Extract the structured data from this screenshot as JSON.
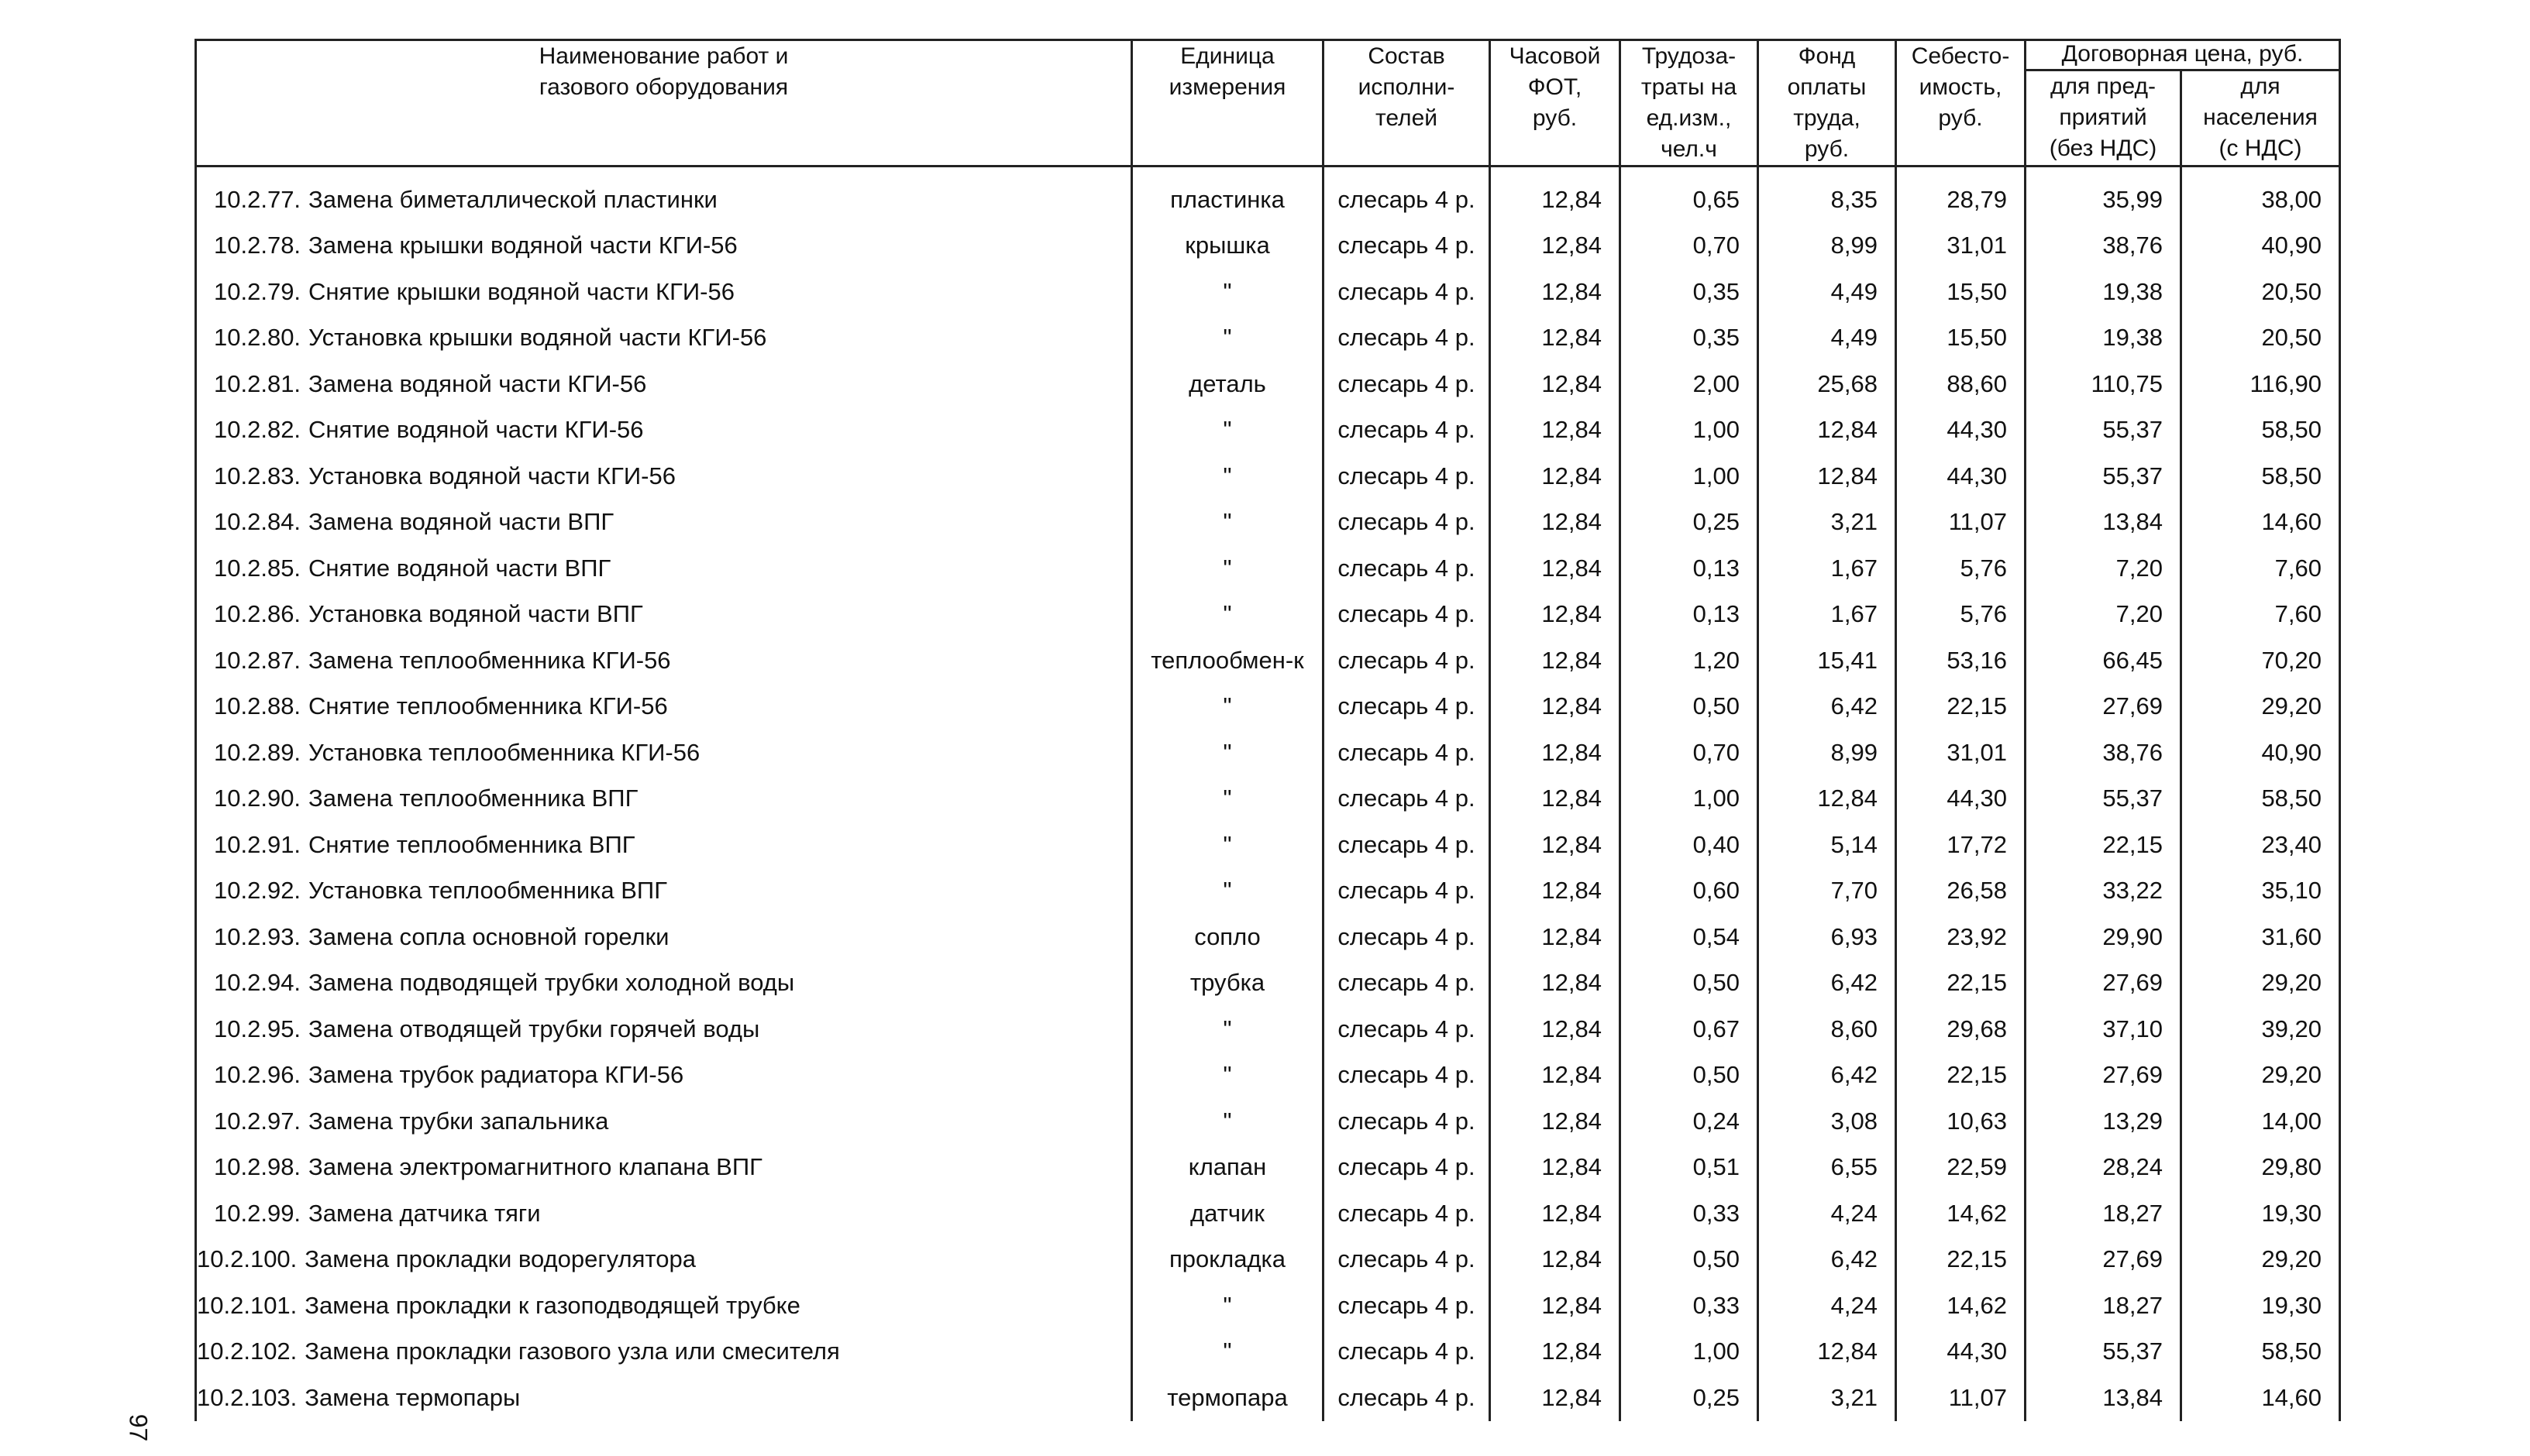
{
  "table": {
    "header": {
      "columns": [
        "Наименование работ и\nгазового оборудования",
        "Единица\nизмерения",
        "Состав\nисполни-\nтелей",
        "Часовой\nФОТ,\nруб.",
        "Трудоза-\nтраты на\nед.изм.,\nчел.ч",
        "Фонд\nоплаты\nтруда,\nруб.",
        "Себесто-\nимость,\nруб."
      ],
      "group": "Договорная цена, руб.",
      "subcolumns": [
        "для пред-\nприятий\n(без НДС)",
        "для\nнаселения\n(с НДС)"
      ]
    },
    "rows": [
      [
        "10.2.77.",
        "Замена биметаллической пластинки",
        "пластинка",
        "слесарь 4 р.",
        "12,84",
        "0,65",
        "8,35",
        "28,79",
        "35,99",
        "38,00"
      ],
      [
        "10.2.78.",
        "Замена крышки водяной части КГИ-56",
        "крышка",
        "слесарь 4 р.",
        "12,84",
        "0,70",
        "8,99",
        "31,01",
        "38,76",
        "40,90"
      ],
      [
        "10.2.79.",
        "Снятие крышки водяной части КГИ-56",
        "\"",
        "слесарь 4 р.",
        "12,84",
        "0,35",
        "4,49",
        "15,50",
        "19,38",
        "20,50"
      ],
      [
        "10.2.80.",
        "Установка крышки водяной части КГИ-56",
        "\"",
        "слесарь 4 р.",
        "12,84",
        "0,35",
        "4,49",
        "15,50",
        "19,38",
        "20,50"
      ],
      [
        "10.2.81.",
        "Замена водяной части КГИ-56",
        "деталь",
        "слесарь 4 р.",
        "12,84",
        "2,00",
        "25,68",
        "88,60",
        "110,75",
        "116,90"
      ],
      [
        "10.2.82.",
        "Снятие водяной части КГИ-56",
        "\"",
        "слесарь 4 р.",
        "12,84",
        "1,00",
        "12,84",
        "44,30",
        "55,37",
        "58,50"
      ],
      [
        "10.2.83.",
        "Установка водяной части КГИ-56",
        "\"",
        "слесарь 4 р.",
        "12,84",
        "1,00",
        "12,84",
        "44,30",
        "55,37",
        "58,50"
      ],
      [
        "10.2.84.",
        "Замена водяной части ВПГ",
        "\"",
        "слесарь 4 р.",
        "12,84",
        "0,25",
        "3,21",
        "11,07",
        "13,84",
        "14,60"
      ],
      [
        "10.2.85.",
        "Снятие водяной части ВПГ",
        "\"",
        "слесарь 4 р.",
        "12,84",
        "0,13",
        "1,67",
        "5,76",
        "7,20",
        "7,60"
      ],
      [
        "10.2.86.",
        "Установка водяной части ВПГ",
        "\"",
        "слесарь 4 р.",
        "12,84",
        "0,13",
        "1,67",
        "5,76",
        "7,20",
        "7,60"
      ],
      [
        "10.2.87.",
        "Замена теплообменника КГИ-56",
        "теплообмен-к",
        "слесарь 4 р.",
        "12,84",
        "1,20",
        "15,41",
        "53,16",
        "66,45",
        "70,20"
      ],
      [
        "10.2.88.",
        "Снятие теплообменника КГИ-56",
        "\"",
        "слесарь 4 р.",
        "12,84",
        "0,50",
        "6,42",
        "22,15",
        "27,69",
        "29,20"
      ],
      [
        "10.2.89.",
        "Установка теплообменника КГИ-56",
        "\"",
        "слесарь 4 р.",
        "12,84",
        "0,70",
        "8,99",
        "31,01",
        "38,76",
        "40,90"
      ],
      [
        "10.2.90.",
        "Замена теплообменника ВПГ",
        "\"",
        "слесарь 4 р.",
        "12,84",
        "1,00",
        "12,84",
        "44,30",
        "55,37",
        "58,50"
      ],
      [
        "10.2.91.",
        "Снятие теплообменника ВПГ",
        "\"",
        "слесарь 4 р.",
        "12,84",
        "0,40",
        "5,14",
        "17,72",
        "22,15",
        "23,40"
      ],
      [
        "10.2.92.",
        "Установка теплообменника ВПГ",
        "\"",
        "слесарь 4 р.",
        "12,84",
        "0,60",
        "7,70",
        "26,58",
        "33,22",
        "35,10"
      ],
      [
        "10.2.93.",
        "Замена сопла основной горелки",
        "сопло",
        "слесарь 4 р.",
        "12,84",
        "0,54",
        "6,93",
        "23,92",
        "29,90",
        "31,60"
      ],
      [
        "10.2.94.",
        "Замена подводящей трубки холодной воды",
        "трубка",
        "слесарь 4 р.",
        "12,84",
        "0,50",
        "6,42",
        "22,15",
        "27,69",
        "29,20"
      ],
      [
        "10.2.95.",
        "Замена отводящей трубки горячей воды",
        "\"",
        "слесарь 4 р.",
        "12,84",
        "0,67",
        "8,60",
        "29,68",
        "37,10",
        "39,20"
      ],
      [
        "10.2.96.",
        "Замена трубок радиатора КГИ-56",
        "\"",
        "слесарь 4 р.",
        "12,84",
        "0,50",
        "6,42",
        "22,15",
        "27,69",
        "29,20"
      ],
      [
        "10.2.97.",
        "Замена трубки запальника",
        "\"",
        "слесарь 4 р.",
        "12,84",
        "0,24",
        "3,08",
        "10,63",
        "13,29",
        "14,00"
      ],
      [
        "10.2.98.",
        "Замена электромагнитного клапана ВПГ",
        "клапан",
        "слесарь 4 р.",
        "12,84",
        "0,51",
        "6,55",
        "22,59",
        "28,24",
        "29,80"
      ],
      [
        "10.2.99.",
        "Замена датчика тяги",
        "датчик",
        "слесарь 4 р.",
        "12,84",
        "0,33",
        "4,24",
        "14,62",
        "18,27",
        "19,30"
      ],
      [
        "10.2.100.",
        "Замена прокладки водорегулятора",
        "прокладка",
        "слесарь 4 р.",
        "12,84",
        "0,50",
        "6,42",
        "22,15",
        "27,69",
        "29,20"
      ],
      [
        "10.2.101.",
        "Замена прокладки к газоподводящей трубке",
        "\"",
        "слесарь 4 р.",
        "12,84",
        "0,33",
        "4,24",
        "14,62",
        "18,27",
        "19,30"
      ],
      [
        "10.2.102.",
        "Замена прокладки газового узла или смесителя",
        "\"",
        "слесарь 4 р.",
        "12,84",
        "1,00",
        "12,84",
        "44,30",
        "55,37",
        "58,50"
      ],
      [
        "10.2.103.",
        "Замена термопары",
        "термопара",
        "слесарь 4 р.",
        "12,84",
        "0,25",
        "3,21",
        "11,07",
        "13,84",
        "14,60"
      ]
    ]
  },
  "page_number": "97"
}
